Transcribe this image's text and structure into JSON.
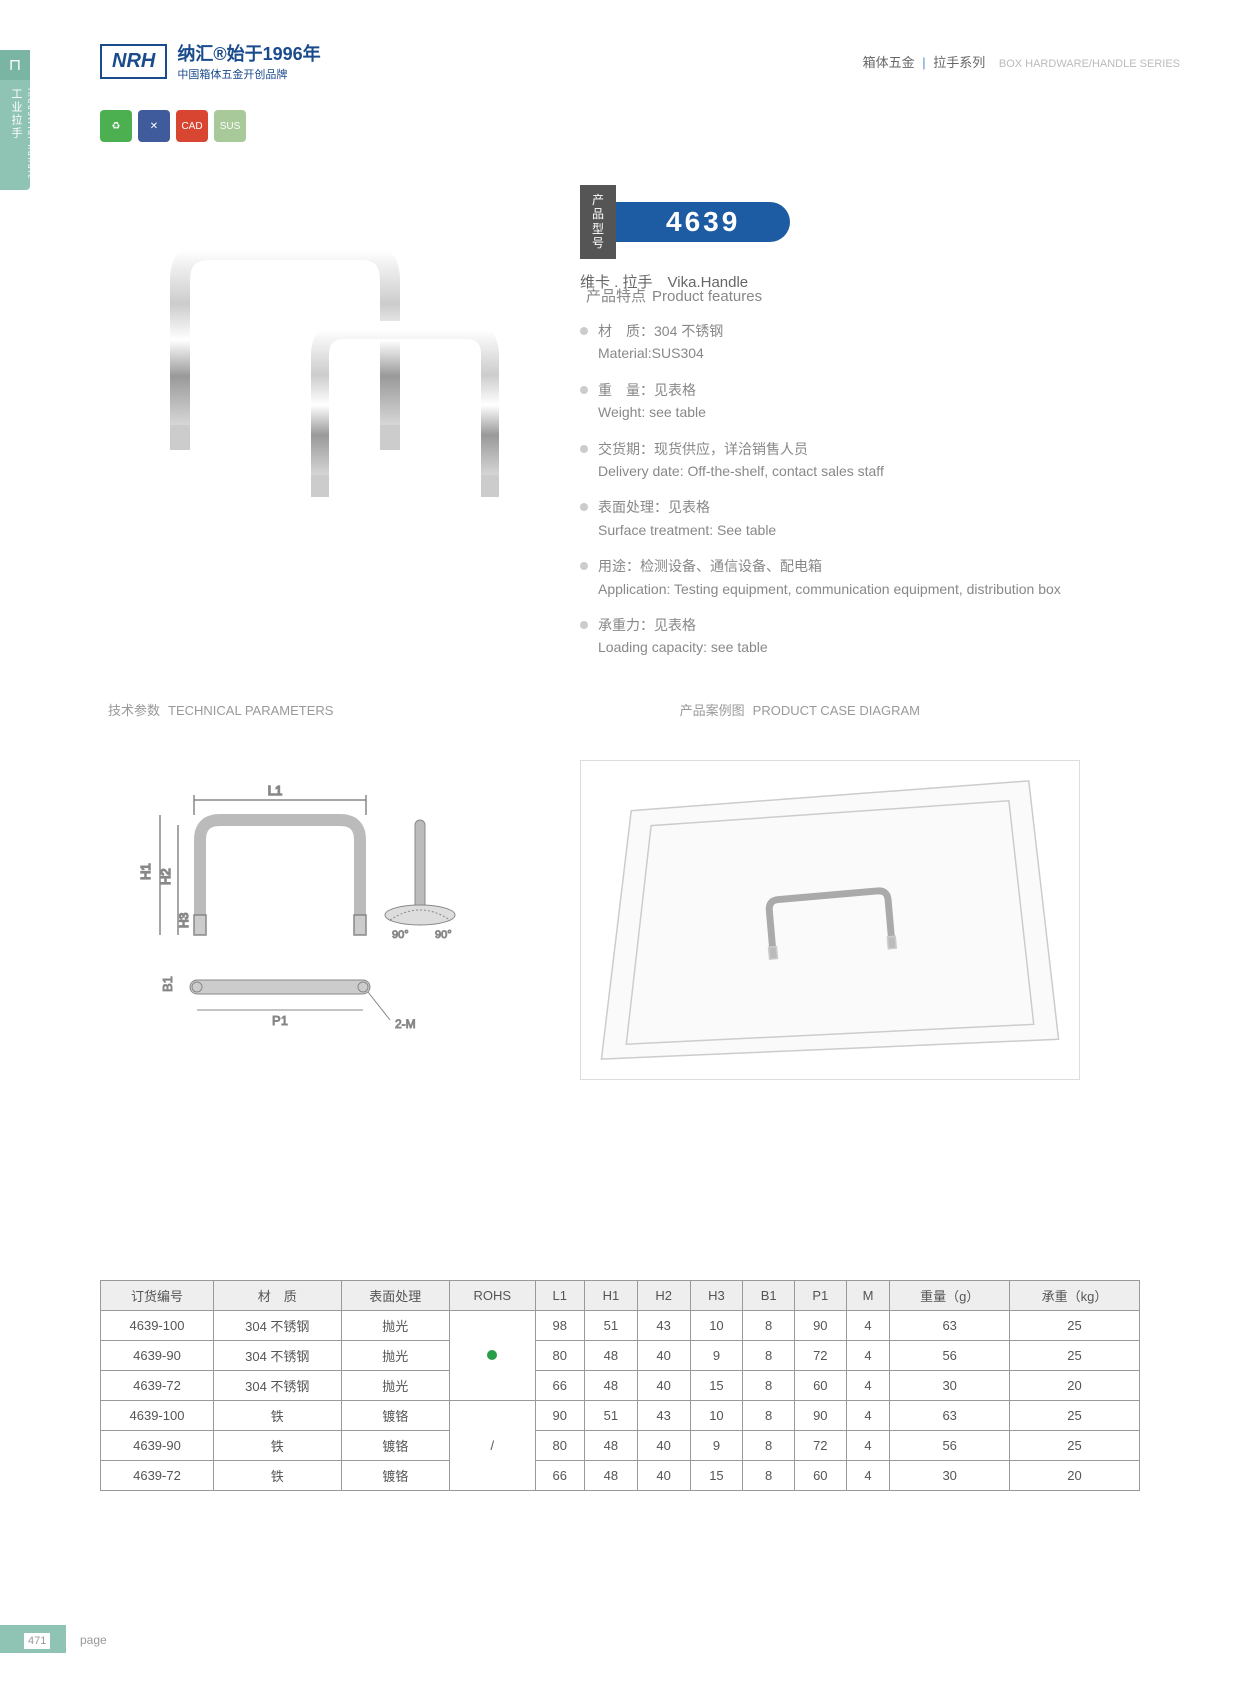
{
  "header": {
    "logo_mark": "NRH",
    "logo_line1": "纳汇®始于1996年",
    "logo_line2": "中国箱体五金开创品牌",
    "crumb_cat": "箱体五金",
    "crumb_sep": "|",
    "crumb_series": "拉手系列",
    "crumb_en": "BOX HARDWARE/HANDLE SERIES"
  },
  "sidetab": {
    "cn": "工业拉手",
    "en": "Industrial handle"
  },
  "badges": [
    "♻",
    "✕",
    "CAD",
    "SUS"
  ],
  "model": {
    "label": "产品\n型号",
    "num": "4639",
    "sub_cn": "维卡 . 拉手",
    "sub_en": "Vika.Handle"
  },
  "features": {
    "title_cn": "产品特点",
    "title_en": "Product features",
    "items": [
      {
        "cn": "材　质：304 不锈钢",
        "en": "Material:SUS304"
      },
      {
        "cn": "重　量：见表格",
        "en": "Weight: see table"
      },
      {
        "cn": "交货期：现货供应，详洽销售人员",
        "en": "Delivery date: Off-the-shelf, contact sales staff"
      },
      {
        "cn": "表面处理：见表格",
        "en": "Surface treatment: See table"
      },
      {
        "cn": "用途：检测设备、通信设备、配电箱",
        "en": "Application: Testing equipment, communication equipment, distribution box"
      },
      {
        "cn": "承重力：见表格",
        "en": "Loading capacity: see table"
      }
    ]
  },
  "sections": {
    "tech_cn": "技术参数",
    "tech_en": "TECHNICAL PARAMETERS",
    "case_cn": "产品案例图",
    "case_en": "PRODUCT CASE DIAGRAM"
  },
  "diagram": {
    "labels": {
      "L1": "L1",
      "H1": "H1",
      "H2": "H2",
      "H3": "H3",
      "B1": "B1",
      "P1": "P1",
      "M": "2-M",
      "ang": "90°"
    }
  },
  "table": {
    "headers": [
      "订货编号",
      "材　质",
      "表面处理",
      "ROHS",
      "L1",
      "H1",
      "H2",
      "H3",
      "B1",
      "P1",
      "M",
      "重量（g）",
      "承重（kg）"
    ],
    "rows": [
      [
        "4639-100",
        "304 不锈钢",
        "抛光",
        "dot",
        "98",
        "51",
        "43",
        "10",
        "8",
        "90",
        "4",
        "63",
        "25"
      ],
      [
        "4639-90",
        "304 不锈钢",
        "抛光",
        "dot",
        "80",
        "48",
        "40",
        "9",
        "8",
        "72",
        "4",
        "56",
        "25"
      ],
      [
        "4639-72",
        "304 不锈钢",
        "抛光",
        "",
        "66",
        "48",
        "40",
        "15",
        "8",
        "60",
        "4",
        "30",
        "20"
      ],
      [
        "4639-100",
        "铁",
        "镀铬",
        "/",
        "90",
        "51",
        "43",
        "10",
        "8",
        "90",
        "4",
        "63",
        "25"
      ],
      [
        "4639-90",
        "铁",
        "镀铬",
        "/",
        "80",
        "48",
        "40",
        "9",
        "8",
        "72",
        "4",
        "56",
        "25"
      ],
      [
        "4639-72",
        "铁",
        "镀铬",
        "",
        "66",
        "48",
        "40",
        "15",
        "8",
        "60",
        "4",
        "30",
        "20"
      ]
    ],
    "rohs_merge": [
      {
        "start": 0,
        "span": 3,
        "val": "dot"
      },
      {
        "start": 3,
        "span": 3,
        "val": "/"
      }
    ]
  },
  "footer": {
    "num": "471",
    "label": "page"
  },
  "colors": {
    "brand": "#1a4b8c",
    "accent": "#1d5ba3",
    "side": "#8fc4b5",
    "rohs": "#2a9d4a"
  }
}
